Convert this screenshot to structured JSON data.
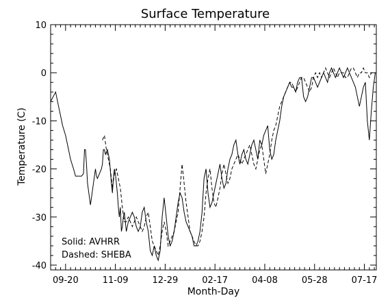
{
  "chart_data": {
    "type": "line",
    "title": "Surface Temperature",
    "xlabel": "Month-Day",
    "ylabel": "Temperature (C)",
    "ylim": [
      -41,
      10
    ],
    "xlim": [
      "09-05",
      "07-29"
    ],
    "y_ticks": [
      10,
      0,
      -10,
      -20,
      -30,
      -40
    ],
    "x_ticks": [
      "09-20",
      "11-09",
      "12-29",
      "02-17",
      "04-08",
      "05-28",
      "07-17"
    ],
    "x_tick_days": [
      15,
      65,
      115,
      165,
      215,
      265,
      315
    ],
    "x_range_days": [
      0,
      327
    ],
    "grid": false,
    "legend": {
      "placement": "bottom-left",
      "entries": [
        "Solid: AVHRR",
        "Dashed: SHEBA"
      ]
    },
    "series": [
      {
        "name": "AVHRR",
        "style": "solid",
        "color": "#000000",
        "x": [
          0,
          5,
          8,
          10,
          12,
          15,
          18,
          20,
          23,
          25,
          27,
          29,
          31,
          33,
          34,
          35,
          36,
          37,
          40,
          45,
          46,
          47,
          49,
          51,
          52,
          53,
          54,
          55,
          57,
          59,
          61,
          62,
          63,
          64,
          65,
          66,
          67,
          68,
          69,
          70,
          71,
          72,
          73,
          74,
          75,
          76,
          77,
          78,
          80,
          82,
          84,
          86,
          88,
          90,
          92,
          94,
          96,
          98,
          100,
          102,
          104,
          106,
          108,
          110,
          112,
          114,
          116,
          118,
          120,
          122,
          124,
          126,
          128,
          130,
          132,
          134,
          136,
          138,
          140,
          142,
          144,
          146,
          148,
          150,
          152,
          154,
          156,
          158,
          160,
          162,
          164,
          166,
          168,
          170,
          172,
          174,
          176,
          178,
          180,
          182,
          184,
          186,
          188,
          190,
          192,
          194,
          196,
          198,
          200,
          202,
          204,
          206,
          208,
          210,
          212,
          214,
          216,
          218,
          220,
          222,
          224,
          226,
          228,
          230,
          232,
          234,
          236,
          238,
          240,
          242,
          244,
          246,
          248,
          250,
          252,
          254,
          256,
          258,
          260,
          262,
          264,
          266,
          268,
          270,
          272,
          274,
          276,
          278,
          280,
          282,
          284,
          286,
          288,
          290,
          292,
          294,
          296,
          298,
          300,
          302,
          304,
          306,
          308,
          310,
          312,
          314,
          316,
          318,
          320,
          322,
          324,
          326
        ],
        "values": [
          -6,
          -4,
          -7,
          -9,
          -11,
          -13,
          -16,
          -18,
          -20,
          -21.5,
          -21.5,
          -21.5,
          -21.5,
          -21,
          -16,
          -16,
          -19,
          -23,
          -27.5,
          -20,
          -21.5,
          -22,
          -21,
          -20,
          -19,
          -16,
          -16,
          -17,
          -16,
          -18,
          -23,
          -25,
          -22,
          -20,
          -21,
          -23,
          -25,
          -28,
          -30,
          -28,
          -33,
          -32,
          -30,
          -29,
          -31,
          -33,
          -32,
          -31,
          -30,
          -29,
          -30,
          -32,
          -33,
          -32,
          -29,
          -28,
          -31,
          -33,
          -37,
          -38,
          -36,
          -38,
          -39,
          -37,
          -30,
          -26,
          -30,
          -34,
          -36,
          -35,
          -33,
          -30,
          -27,
          -25,
          -26,
          -29,
          -31,
          -32,
          -33,
          -34,
          -36,
          -36,
          -35,
          -33,
          -29,
          -22,
          -20,
          -25,
          -28,
          -27,
          -25,
          -23,
          -21,
          -19,
          -22,
          -24,
          -23,
          -20,
          -18,
          -17,
          -15,
          -14,
          -17,
          -19,
          -17,
          -16,
          -18,
          -19,
          -17,
          -15,
          -14,
          -16,
          -18,
          -14,
          -15,
          -13,
          -12,
          -11,
          -16,
          -18,
          -17,
          -14,
          -12,
          -10,
          -7,
          -5,
          -4,
          -3,
          -2,
          -3,
          -3,
          -4,
          -2,
          -1,
          -1,
          -5,
          -6,
          -5,
          -3,
          -1,
          -1,
          -2,
          -3,
          -2,
          -1,
          0,
          -1,
          -2,
          0,
          1,
          0,
          -1,
          0,
          1,
          0,
          -1,
          0,
          1,
          0,
          -1,
          -2,
          -3,
          -5,
          -7,
          -5,
          -3,
          -2,
          -10,
          -14,
          -8,
          -3,
          0
        ],
        "notes": ""
      },
      {
        "name": "SHEBA",
        "style": "dashed",
        "color": "#000000",
        "x": [
          52,
          54,
          56,
          58,
          60,
          62,
          64,
          66,
          68,
          70,
          72,
          74,
          76,
          78,
          80,
          82,
          84,
          86,
          88,
          90,
          92,
          94,
          96,
          98,
          100,
          102,
          104,
          106,
          108,
          110,
          112,
          114,
          116,
          118,
          120,
          122,
          124,
          126,
          128,
          130,
          132,
          134,
          136,
          138,
          140,
          142,
          144,
          146,
          148,
          150,
          152,
          154,
          156,
          158,
          160,
          162,
          164,
          166,
          168,
          170,
          172,
          174,
          176,
          178,
          180,
          182,
          184,
          186,
          188,
          190,
          192,
          194,
          196,
          198,
          200,
          202,
          204,
          206,
          208,
          210,
          212,
          214,
          216,
          218,
          220,
          222,
          224,
          226,
          228,
          230,
          232,
          234,
          236,
          238,
          240,
          242,
          244,
          246,
          248,
          250,
          252,
          254,
          256,
          258,
          260,
          262,
          264,
          266,
          268,
          270,
          272,
          274,
          276,
          278,
          280,
          282,
          284,
          286,
          288,
          290,
          292,
          294,
          296,
          298,
          300,
          302,
          304,
          306,
          308,
          310,
          312,
          314,
          316,
          318,
          320,
          322,
          324,
          326
        ],
        "values": [
          -14,
          -13,
          -16,
          -18,
          -20,
          -24,
          -21,
          -20,
          -22,
          -24,
          -28,
          -31,
          -31,
          -30,
          -31,
          -32,
          -31,
          -30,
          -31,
          -32,
          -33,
          -32,
          -30,
          -29,
          -32,
          -35,
          -36,
          -37,
          -38,
          -36,
          -33,
          -31,
          -33,
          -36,
          -35,
          -34,
          -33,
          -31,
          -29,
          -24,
          -19,
          -23,
          -27,
          -30,
          -33,
          -34,
          -35,
          -36,
          -36,
          -35,
          -33,
          -30,
          -25,
          -22,
          -20,
          -24,
          -27,
          -28,
          -26,
          -24,
          -21,
          -19,
          -21,
          -23,
          -22,
          -20,
          -19,
          -18,
          -17,
          -18,
          -19,
          -18,
          -17,
          -16,
          -15,
          -17,
          -19,
          -20,
          -18,
          -16,
          -15,
          -18,
          -21,
          -19,
          -17,
          -14,
          -12,
          -11,
          -9,
          -7,
          -6,
          -5,
          -4,
          -3,
          -2,
          -2,
          -3,
          -4,
          -3,
          -2,
          -1,
          -1,
          -2,
          -3,
          -4,
          -3,
          -1,
          0,
          -1,
          0,
          -1,
          0,
          1,
          0,
          -1,
          0,
          1,
          0,
          -1,
          0,
          0,
          0,
          -1,
          -1,
          0,
          1,
          1,
          0,
          -1,
          0,
          0,
          1,
          0,
          0,
          -1,
          0,
          0,
          0
        ]
      }
    ]
  }
}
